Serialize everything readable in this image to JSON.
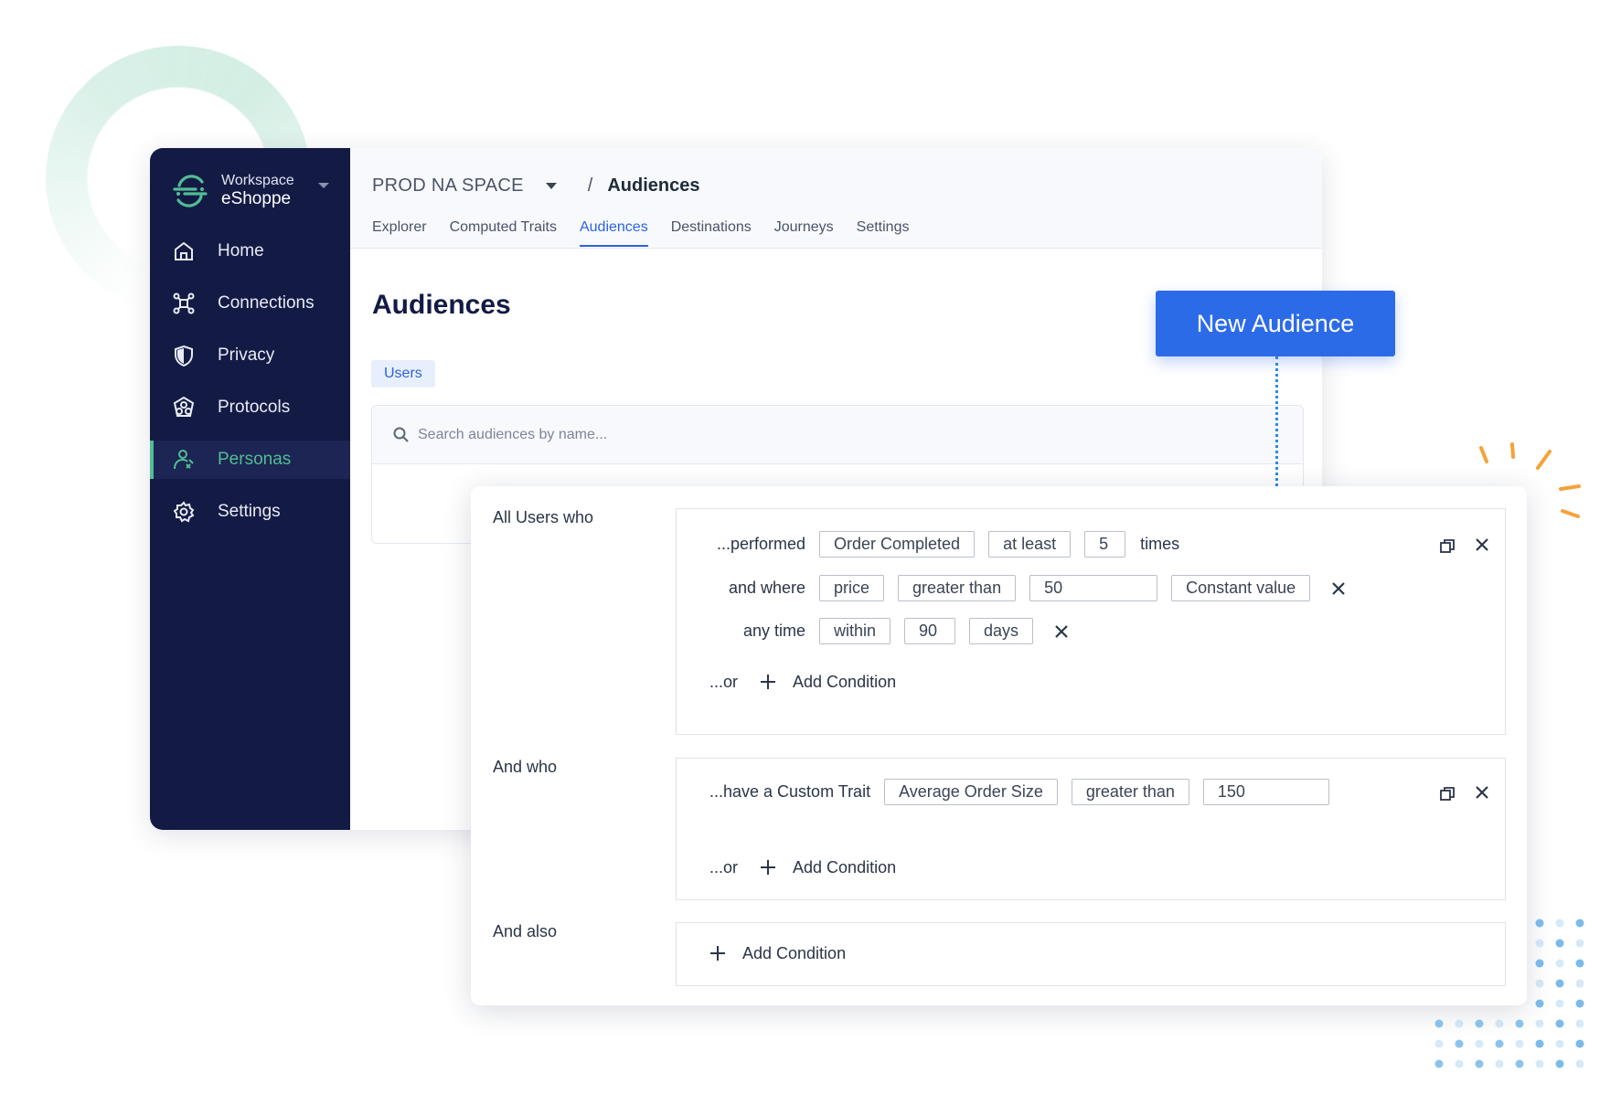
{
  "workspace": {
    "label": "Workspace",
    "name": "eShoppe"
  },
  "sidebar": {
    "items": [
      {
        "label": "Home",
        "icon": "home-icon"
      },
      {
        "label": "Connections",
        "icon": "connections-icon"
      },
      {
        "label": "Privacy",
        "icon": "shield-icon"
      },
      {
        "label": "Protocols",
        "icon": "protocols-icon"
      },
      {
        "label": "Personas",
        "icon": "personas-icon",
        "active": true
      },
      {
        "label": "Settings",
        "icon": "gear-icon"
      }
    ]
  },
  "header": {
    "space": "PROD NA SPACE",
    "separator": "/",
    "page": "Audiences",
    "tabs": [
      {
        "label": "Explorer"
      },
      {
        "label": "Computed Traits"
      },
      {
        "label": "Audiences",
        "active": true
      },
      {
        "label": "Destinations"
      },
      {
        "label": "Journeys"
      },
      {
        "label": "Settings"
      }
    ]
  },
  "main": {
    "title": "Audiences",
    "filter_pill": "Users",
    "search_placeholder": "Search audiences by name..."
  },
  "new_audience_button": "New Audience",
  "builder": {
    "group1": {
      "label": "All Users who",
      "performed_label": "...performed",
      "event": "Order Completed",
      "frequency_op": "at least",
      "count": "5",
      "times_label": "times",
      "where_label": "and where",
      "property": "price",
      "comparison": "greater than",
      "value": "50",
      "value_type": "Constant value",
      "time_label": "any time",
      "time_op": "within",
      "time_amount": "90",
      "time_unit": "days",
      "or_label": "...or",
      "add_condition": "Add Condition"
    },
    "group2": {
      "label": "And who",
      "trait_label": "...have a Custom Trait",
      "trait": "Average Order Size",
      "comparison": "greater than",
      "value": "150",
      "or_label": "...or",
      "add_condition": "Add Condition"
    },
    "group3": {
      "label": "And also",
      "add_condition": "Add Condition"
    }
  },
  "colors": {
    "sidebar_bg": "#131b45",
    "accent_green": "#52bd94",
    "accent_blue": "#2c6be8",
    "decor_orange": "#f5a23a",
    "decor_dots": "#5aa9e6"
  }
}
